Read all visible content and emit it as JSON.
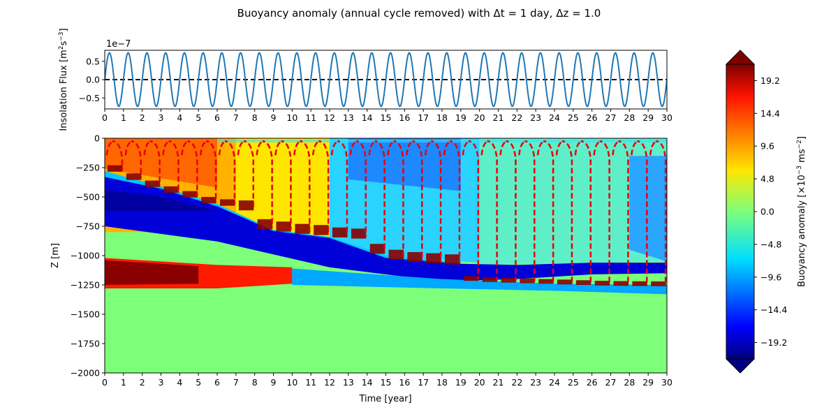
{
  "title": "Buoyancy anomaly (annual cycle removed) with Δt = 1 day, Δz = 1.0",
  "chart_data": [
    {
      "type": "line",
      "ylabel_prefix": "Insolation Flux [m",
      "ylabel_exp1": "2",
      "ylabel_mid": "s",
      "ylabel_exp2": "−3",
      "ylabel_suffix": "]",
      "offset_label": "1e−7",
      "xlim": [
        0,
        30
      ],
      "ylim": [
        -0.8,
        0.8
      ],
      "x_ticks": [
        "0",
        "1",
        "2",
        "3",
        "4",
        "5",
        "6",
        "7",
        "8",
        "9",
        "10",
        "11",
        "12",
        "13",
        "14",
        "15",
        "16",
        "17",
        "18",
        "19",
        "20",
        "21",
        "22",
        "23",
        "24",
        "25",
        "26",
        "27",
        "28",
        "29",
        "30"
      ],
      "y_ticks": [
        "0.5",
        "0.0",
        "−0.5"
      ],
      "y_tick_values": [
        0.5,
        0.0,
        -0.5
      ],
      "series": [
        {
          "amplitude": 0.73,
          "period_years": 1,
          "color": "#1f77b4"
        }
      ],
      "reference_line": {
        "y": 0.0,
        "style": "dashed",
        "color": "#000000"
      }
    },
    {
      "type": "heatmap",
      "xlabel": "Time [year]",
      "ylabel": "Z [m]",
      "xlim": [
        0,
        30
      ],
      "ylim": [
        -2000,
        0
      ],
      "x_ticks": [
        "0",
        "1",
        "2",
        "3",
        "4",
        "5",
        "6",
        "7",
        "8",
        "9",
        "10",
        "11",
        "12",
        "13",
        "14",
        "15",
        "16",
        "17",
        "18",
        "19",
        "20",
        "21",
        "22",
        "23",
        "24",
        "25",
        "26",
        "27",
        "28",
        "29",
        "30"
      ],
      "y_ticks": [
        "0",
        "−250",
        "−500",
        "−750",
        "−1000",
        "−1250",
        "−1500",
        "−1750",
        "−2000"
      ],
      "y_tick_values": [
        0,
        -250,
        -500,
        -750,
        -1000,
        -1250,
        -1500,
        -1750,
        -2000
      ],
      "colormap": "jet",
      "mixed_layer_bottom_m": [
        -270,
        -340,
        -400,
        -450,
        -490,
        -540,
        -560,
        -600,
        -760,
        -780,
        -800,
        -810,
        -830,
        -840,
        -970,
        -1020,
        -1040,
        -1050,
        -1060,
        -1200,
        -1210,
        -1215,
        -1220,
        -1225,
        -1230,
        -1235,
        -1240,
        -1242,
        -1244,
        -1245
      ],
      "mixed_layer_line": {
        "style": "dashed",
        "color": "#e8000b"
      }
    }
  ],
  "colorbar": {
    "label_prefix": "Buoyancy anomaly [×10",
    "label_exp1": "−3",
    "label_mid": " ms",
    "label_exp2": "−2",
    "label_suffix": "]",
    "range": [
      -21.6,
      21.6
    ],
    "ticks": [
      "19.2",
      "14.4",
      "9.6",
      "4.8",
      "0.0",
      "−4.8",
      "−9.6",
      "−14.4",
      "−19.2"
    ],
    "tick_values": [
      19.2,
      14.4,
      9.6,
      4.8,
      0.0,
      -4.8,
      -9.6,
      -14.4,
      -19.2
    ]
  }
}
